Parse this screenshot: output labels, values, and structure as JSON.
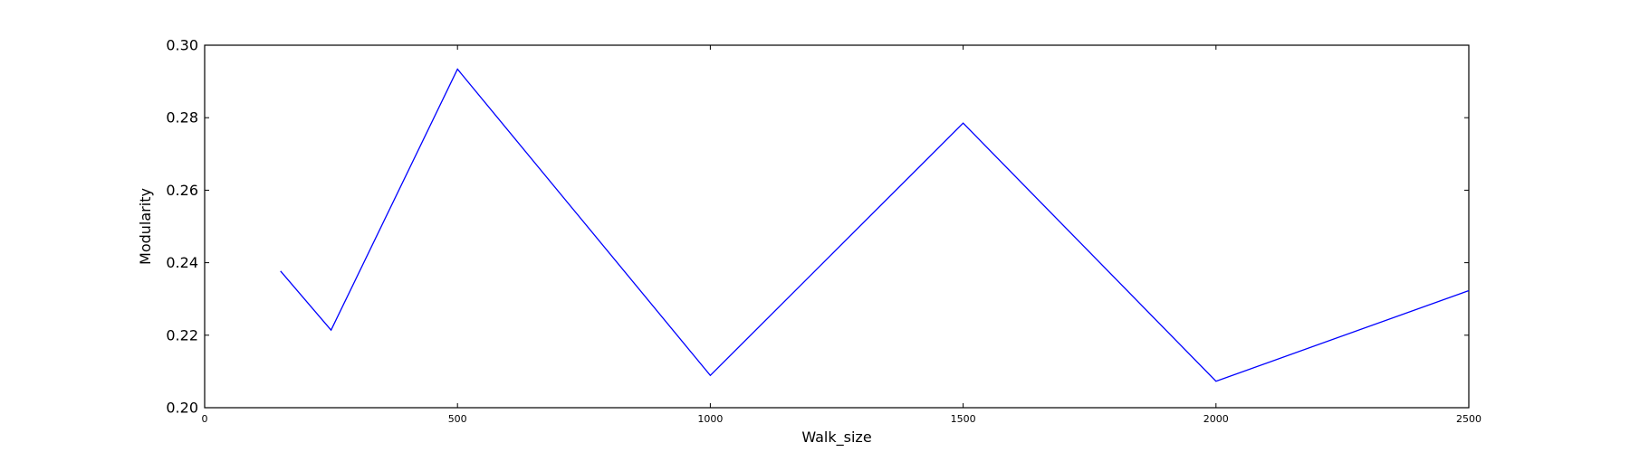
{
  "chart_data": {
    "type": "line",
    "title": "",
    "xlabel": "Walk_size",
    "ylabel": "Modularity",
    "xlim": [
      0,
      2500
    ],
    "ylim": [
      0.2,
      0.3
    ],
    "xticks": [
      0,
      500,
      1000,
      1500,
      2000,
      2500
    ],
    "yticks": [
      0.2,
      0.22,
      0.24,
      0.26,
      0.28,
      0.3
    ],
    "xtick_labels": [
      "0",
      "500",
      "1000",
      "1500",
      "2000",
      "2500"
    ],
    "ytick_labels": [
      "0.20",
      "0.22",
      "0.24",
      "0.26",
      "0.28",
      "0.30"
    ],
    "grid": false,
    "series": [
      {
        "color": "#0000ff",
        "x": [
          150,
          250,
          500,
          1000,
          1500,
          2000,
          2500
        ],
        "y": [
          0.2377,
          0.2214,
          0.2934,
          0.2089,
          0.2785,
          0.2073,
          0.2323
        ]
      }
    ]
  }
}
